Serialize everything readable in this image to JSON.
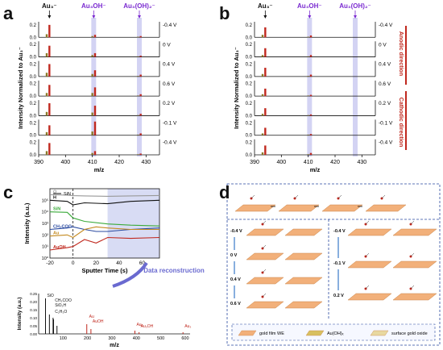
{
  "panels": {
    "a": {
      "letter": "a"
    },
    "b": {
      "letter": "b"
    },
    "c": {
      "letter": "c"
    },
    "d": {
      "letter": "d"
    }
  },
  "stack": {
    "ylabel": "Intensity Normalized to Au₃⁻",
    "xlabel": "m/z",
    "x_ticks": [
      390,
      400,
      410,
      420,
      430
    ],
    "y_ticks": [
      "0.0",
      "0.2"
    ],
    "peak_labels": {
      "au3": "Au₃⁻",
      "au3oh": "Au₃OH⁻",
      "au3oh2": "Au₃(OH)₂⁻"
    },
    "highlight_color": "#c8c8f0",
    "bar_color": "#c0281e",
    "olive_color": "#8a7a2a"
  },
  "chart_data": [
    {
      "type": "bar",
      "panel": "a",
      "title": "",
      "xlabel": "m/z",
      "ylabel": "Intensity Normalized to Au₃⁻",
      "xlim": [
        390,
        435
      ],
      "ylim": [
        0,
        0.25
      ],
      "potentials": [
        "-0.4 V",
        "0 V",
        "0.4 V",
        "0.6 V",
        "0.2 V",
        "-0.1 V",
        "-0.4 V"
      ],
      "series": [
        {
          "potential": "-0.4 V",
          "x": [
            393,
            394,
            410,
            411,
            427,
            428
          ],
          "values": [
            0.05,
            0.2,
            0.02,
            0.04,
            0.01,
            0.02
          ]
        },
        {
          "potential": "0 V",
          "x": [
            393,
            394,
            410,
            411,
            427,
            428
          ],
          "values": [
            0.06,
            0.18,
            0.03,
            0.06,
            0.01,
            0.02
          ]
        },
        {
          "potential": "0.4 V",
          "x": [
            393,
            394,
            410,
            411,
            427,
            428
          ],
          "values": [
            0.06,
            0.2,
            0.04,
            0.1,
            0.01,
            0.03
          ]
        },
        {
          "potential": "0.6 V",
          "x": [
            393,
            394,
            410,
            411,
            427,
            428
          ],
          "values": [
            0.05,
            0.18,
            0.05,
            0.14,
            0.01,
            0.03
          ]
        },
        {
          "potential": "0.2 V",
          "x": [
            393,
            394,
            410,
            411,
            427,
            428
          ],
          "values": [
            0.06,
            0.2,
            0.05,
            0.16,
            0.01,
            0.03
          ]
        },
        {
          "potential": "-0.1 V",
          "x": [
            393,
            394,
            410,
            411,
            427,
            428
          ],
          "values": [
            0.05,
            0.16,
            0.06,
            0.22,
            0.01,
            0.03
          ]
        },
        {
          "potential": "-0.4 V",
          "x": [
            393,
            394,
            410,
            411,
            427,
            428
          ],
          "values": [
            0.06,
            0.19,
            0.03,
            0.06,
            0.01,
            0.02
          ]
        }
      ]
    },
    {
      "type": "bar",
      "panel": "b",
      "title": "",
      "xlabel": "m/z",
      "ylabel": "Intensity Normalized to Au₃⁻",
      "xlim": [
        390,
        435
      ],
      "ylim": [
        0,
        0.25
      ],
      "potentials": [
        "-0.4 V",
        "0 V",
        "0.4 V",
        "0.6 V",
        "0.2 V",
        "-0.1 V",
        "-0.4 V"
      ],
      "direction_labels": [
        "Anodic direction",
        "Cathodic direction"
      ],
      "series": [
        {
          "potential": "-0.4 V",
          "x": [
            393,
            394,
            410,
            411
          ],
          "values": [
            0.04,
            0.16,
            0.01,
            0.03
          ]
        },
        {
          "potential": "0 V",
          "x": [
            393,
            394,
            410,
            411
          ],
          "values": [
            0.03,
            0.14,
            0.01,
            0.03
          ]
        },
        {
          "potential": "0.4 V",
          "x": [
            393,
            394,
            410,
            411
          ],
          "values": [
            0.04,
            0.14,
            0.01,
            0.03
          ]
        },
        {
          "potential": "0.6 V",
          "x": [
            393,
            394,
            410,
            411
          ],
          "values": [
            0.03,
            0.12,
            0.01,
            0.02
          ]
        },
        {
          "potential": "0.2 V",
          "x": [
            393,
            394,
            410,
            411
          ],
          "values": [
            0.03,
            0.12,
            0.01,
            0.02
          ]
        },
        {
          "potential": "-0.1 V",
          "x": [
            393,
            394,
            410,
            411
          ],
          "values": [
            0.03,
            0.12,
            0.01,
            0.02
          ]
        },
        {
          "potential": "-0.4 V",
          "x": [
            393,
            394,
            410,
            411
          ],
          "values": [
            0.04,
            0.15,
            0.01,
            0.03
          ]
        }
      ]
    },
    {
      "type": "line",
      "panel": "c",
      "title": "",
      "xlabel": "Sputter Time (s)",
      "ylabel": "Intensity (a.u.)",
      "x_ticks": [
        -20,
        0,
        20,
        40,
        60
      ],
      "xlim": [
        -20,
        75
      ],
      "y_ticks": [
        "10⁰",
        "10¹",
        "10²",
        "10³",
        "10⁴",
        "10⁵"
      ],
      "log_y": true,
      "legend_label": "SiN",
      "series": [
        {
          "name": "O",
          "color": "#999999",
          "x": [
            -20,
            -5,
            0,
            10,
            30,
            50,
            75
          ],
          "values": [
            300000,
            280000,
            250000,
            240000,
            220000,
            240000,
            260000
          ]
        },
        {
          "name": "H",
          "color": "#111111",
          "x": [
            -20,
            -5,
            0,
            10,
            30,
            50,
            75
          ],
          "values": [
            100000,
            80000,
            40000,
            60000,
            50000,
            80000,
            100000
          ]
        },
        {
          "name": "SiN",
          "color": "#3aaa3a",
          "x": [
            -20,
            -5,
            0,
            10,
            30,
            50,
            75
          ],
          "values": [
            10000,
            9000,
            3000,
            1500,
            900,
            700,
            600
          ]
        },
        {
          "name": "CH₃COO",
          "color": "#2a4aa0",
          "x": [
            -20,
            -5,
            0,
            10,
            20,
            30,
            50,
            75
          ],
          "values": [
            300,
            400,
            500,
            300,
            200,
            200,
            300,
            400
          ]
        },
        {
          "name": "Au",
          "color": "#c48a20",
          "x": [
            -20,
            -5,
            0,
            10,
            20,
            30,
            50,
            75
          ],
          "values": [
            80,
            100,
            60,
            300,
            500,
            400,
            300,
            300
          ]
        },
        {
          "name": "AuOH",
          "color": "#c0281e",
          "x": [
            -20,
            -5,
            0,
            10,
            20,
            30,
            50,
            75
          ],
          "values": [
            5,
            8,
            10,
            40,
            20,
            60,
            50,
            60
          ]
        }
      ]
    },
    {
      "type": "bar",
      "panel": "c-inset",
      "title": "",
      "xlabel": "m/z",
      "ylabel": "Intensity (a.u.)",
      "x_ticks": [
        100,
        200,
        300,
        400,
        500,
        600
      ],
      "y_ticks": [
        "0.00",
        "0.05",
        "0.10",
        "0.15",
        "0.20",
        "0.25"
      ],
      "ylim": [
        0,
        0.25
      ],
      "x": [
        28,
        44,
        59,
        61,
        75,
        197,
        214,
        394,
        411,
        591
      ],
      "values": [
        0.22,
        0.12,
        0.1,
        0.09,
        0.05,
        0.06,
        0.03,
        0.02,
        0.01,
        0.01
      ],
      "peak_labels": [
        "SiO",
        "CH₃COO",
        "SiO₂H",
        "C₂H₃O",
        "Au",
        "AuOH",
        "Au₂",
        "Au₃OH",
        "Au₃"
      ]
    }
  ],
  "panel_c": {
    "reconstruction_label": "Data reconstruction",
    "shade_color": "#d8dcf4",
    "arrow_color": "#6a6ad0"
  },
  "panel_d": {
    "potentials_left": [
      "-0.4 V",
      "0 V",
      "0.4 V",
      "0.6 V"
    ],
    "potentials_right": [
      "-0.4 V",
      "-0.1 V",
      "0.2 V"
    ],
    "legend": [
      "gold film WE",
      "Au(OH)ₓ",
      "surface gold oxide"
    ],
    "slab_color": "#f2b07a"
  }
}
